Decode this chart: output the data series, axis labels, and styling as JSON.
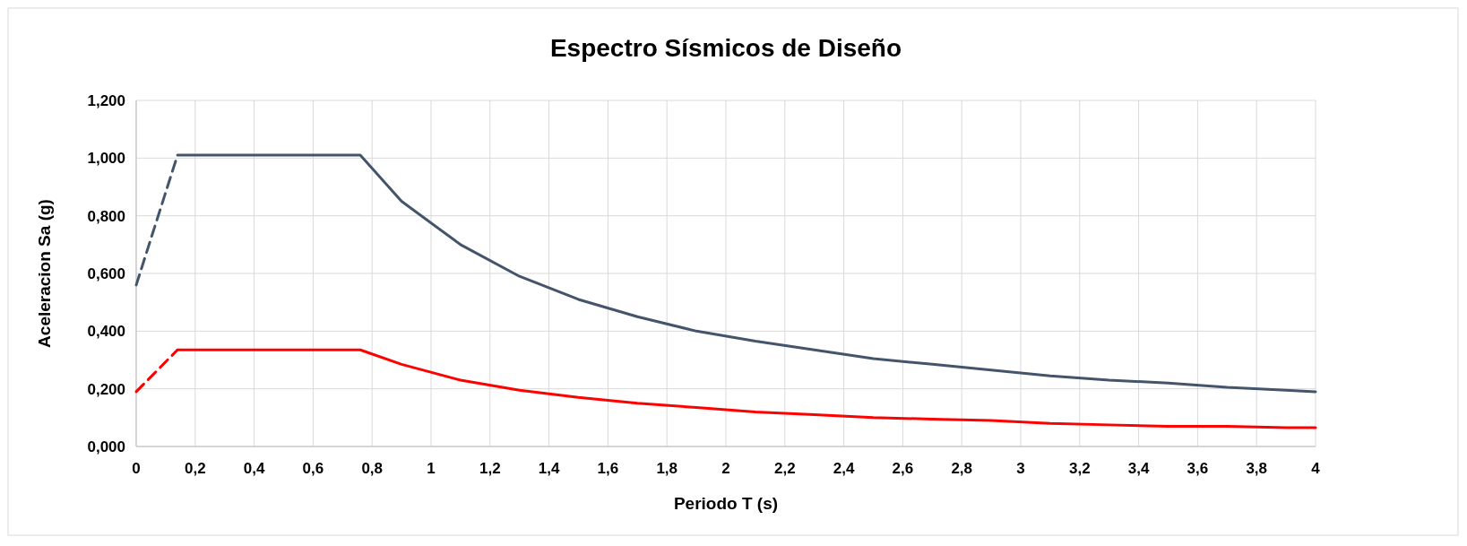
{
  "chart_data": {
    "type": "line",
    "title": "Espectro Sísmicos de Diseño",
    "xlabel": "Periodo T (s)",
    "ylabel": "Aceleracion Sa (g)",
    "xlim": [
      0,
      4
    ],
    "xticks": [
      0,
      {
        "value": 0.2,
        "label": "0,2"
      },
      {
        "value": 0.4,
        "label": "0,4"
      },
      {
        "value": 0.6,
        "label": "0,6"
      },
      {
        "value": 0.8,
        "label": "0,8"
      },
      1,
      {
        "value": 1.2,
        "label": "1,2"
      },
      {
        "value": 1.4,
        "label": "1,4"
      },
      {
        "value": 1.6,
        "label": "1,6"
      },
      {
        "value": 1.8,
        "label": "1,8"
      },
      2,
      {
        "value": 2.2,
        "label": "2,2"
      },
      {
        "value": 2.4,
        "label": "2,4"
      },
      {
        "value": 2.6,
        "label": "2,6"
      },
      {
        "value": 2.8,
        "label": "2,8"
      },
      3,
      {
        "value": 3.2,
        "label": "3,2"
      },
      {
        "value": 3.4,
        "label": "3,4"
      },
      {
        "value": 3.6,
        "label": "3,6"
      },
      {
        "value": 3.8,
        "label": "3,8"
      },
      4
    ],
    "ylim": [
      0,
      1.2
    ],
    "yticks": [
      {
        "value": 0,
        "label": "0,000"
      },
      {
        "value": 0.2,
        "label": "0,200"
      },
      {
        "value": 0.4,
        "label": "0,400"
      },
      {
        "value": 0.6,
        "label": "0,600"
      },
      {
        "value": 0.8,
        "label": "0,800"
      },
      {
        "value": 1,
        "label": "1,000"
      },
      {
        "value": 1.2,
        "label": "1,200"
      }
    ],
    "grid": true,
    "marker": "none",
    "series": [
      {
        "color": "#44546a",
        "line_style": "dashed",
        "x": [
          0,
          0.14
        ],
        "values": [
          0.56,
          1.01
        ]
      },
      {
        "color": "#44546a",
        "line_style": "solid",
        "x": [
          0.14,
          0.76,
          0.9,
          1.1,
          1.3,
          1.5,
          1.7,
          1.9,
          2.1,
          2.3,
          2.5,
          2.7,
          2.9,
          3.1,
          3.3,
          3.5,
          3.7,
          3.9,
          4
        ],
        "values": [
          1.01,
          1.01,
          0.85,
          0.7,
          0.59,
          0.51,
          0.45,
          0.4,
          0.365,
          0.335,
          0.305,
          0.285,
          0.265,
          0.245,
          0.23,
          0.22,
          0.205,
          0.195,
          0.19
        ]
      },
      {
        "color": "#ff0000",
        "line_style": "dashed",
        "x": [
          0,
          0.14
        ],
        "values": [
          0.19,
          0.335
        ]
      },
      {
        "color": "#ff0000",
        "line_style": "solid",
        "x": [
          0.14,
          0.76,
          0.9,
          1.1,
          1.3,
          1.5,
          1.7,
          1.9,
          2.1,
          2.3,
          2.5,
          2.7,
          2.9,
          3.1,
          3.3,
          3.5,
          3.7,
          3.9,
          4
        ],
        "values": [
          0.335,
          0.335,
          0.285,
          0.23,
          0.195,
          0.17,
          0.15,
          0.135,
          0.12,
          0.11,
          0.1,
          0.095,
          0.09,
          0.08,
          0.075,
          0.07,
          0.07,
          0.065,
          0.065
        ]
      }
    ]
  }
}
